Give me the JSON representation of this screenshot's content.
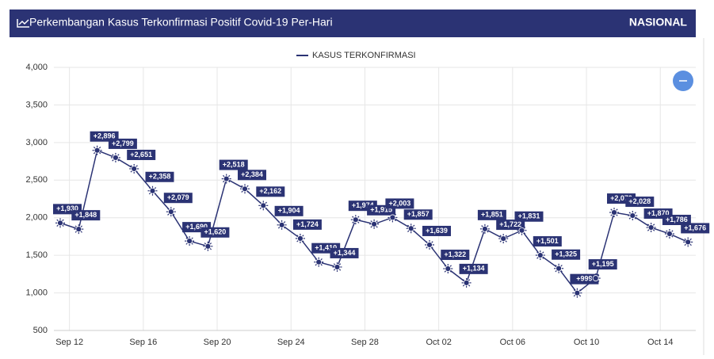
{
  "chart_data": {
    "type": "line",
    "title": "Perkembangan Kasus Terkonfirmasi Positif Covid-19 Per-Hari",
    "badge": "NASIONAL",
    "categories": [
      null,
      "Sep 12",
      null,
      null,
      null,
      "Sep 16",
      null,
      null,
      null,
      "Sep 20",
      null,
      null,
      null,
      "Sep 24",
      null,
      null,
      null,
      "Sep 28",
      null,
      null,
      null,
      "Oct 02",
      null,
      null,
      null,
      "Oct 06",
      null,
      null,
      null,
      "Oct 10",
      null,
      null,
      null,
      "Oct 14",
      null
    ],
    "series": [
      {
        "name": "KASUS TERKONFIRMASI",
        "color": "#2b3374",
        "values": [
          1930,
          1848,
          2896,
          2799,
          2651,
          2358,
          2079,
          1690,
          1620,
          2518,
          2384,
          2162,
          1904,
          1724,
          1410,
          1344,
          1974,
          1915,
          2003,
          1857,
          1639,
          1322,
          1134,
          1851,
          1722,
          1831,
          1501,
          1325,
          999,
          1195,
          2070,
          2028,
          1870,
          1786,
          1676
        ],
        "value_labels": [
          "+1,930",
          "+1,848",
          "+2,896",
          "+2,799",
          "+2,651",
          "+2,358",
          "+2,079",
          "+1,690",
          "+1,620",
          "+2,518",
          "+2,384",
          "+2,162",
          "+1,904",
          "+1,724",
          "+1,410",
          "+1,344",
          "+1,974",
          "+1,915",
          "+2,003",
          "+1,857",
          "+1,639",
          "+1,322",
          "+1,134",
          "+1,851",
          "+1,722",
          "+1,831",
          "+1,501",
          "+1,325",
          "+999",
          "+1,195",
          "+2,070",
          "+2,028",
          "+1,870",
          "+1,786",
          "+1,676"
        ]
      }
    ],
    "ylim": [
      500,
      4000
    ],
    "yticks": [
      500,
      {
        "value": 1000,
        "label": "1,000"
      },
      {
        "value": 1500,
        "label": "1,500"
      },
      {
        "value": 2000,
        "label": "2,000"
      },
      {
        "value": 2500,
        "label": "2,500"
      },
      {
        "value": 3000,
        "label": "3,000"
      },
      {
        "value": 3500,
        "label": "3,500"
      },
      {
        "value": 4000,
        "label": "4,000"
      }
    ],
    "grid": true
  }
}
